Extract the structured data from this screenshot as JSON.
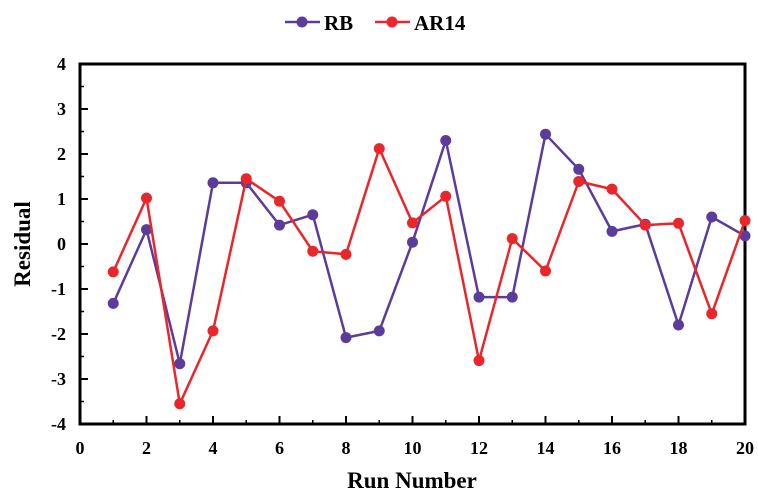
{
  "chart_data": {
    "type": "line",
    "xlabel": "Run Number",
    "ylabel": "Residual",
    "xlim": [
      0,
      20
    ],
    "ylim": [
      -4,
      4
    ],
    "xticks": [
      0,
      2,
      4,
      6,
      8,
      10,
      12,
      14,
      16,
      18,
      20
    ],
    "yticks": [
      -4,
      -3,
      -2,
      -1,
      0,
      1,
      2,
      3,
      4
    ],
    "grid": false,
    "legend_position": "top-center",
    "x": [
      1,
      2,
      3,
      4,
      5,
      6,
      7,
      8,
      9,
      10,
      11,
      12,
      13,
      14,
      15,
      16,
      17,
      18,
      19,
      20
    ],
    "series": [
      {
        "name": "RB",
        "color": "#5b3c9a",
        "values": [
          -1.32,
          0.32,
          -2.66,
          1.36,
          1.36,
          0.42,
          0.65,
          -2.08,
          -1.93,
          0.04,
          2.3,
          -1.18,
          -1.18,
          2.44,
          1.66,
          0.28,
          0.44,
          -1.8,
          0.6,
          0.18
        ]
      },
      {
        "name": "AR14",
        "color": "#e8262b",
        "values": [
          -0.62,
          1.02,
          -3.55,
          -1.93,
          1.45,
          0.95,
          -0.16,
          -0.23,
          2.12,
          0.47,
          1.06,
          -2.59,
          0.12,
          -0.6,
          1.39,
          1.22,
          0.42,
          0.46,
          -1.55,
          0.52
        ]
      }
    ]
  }
}
